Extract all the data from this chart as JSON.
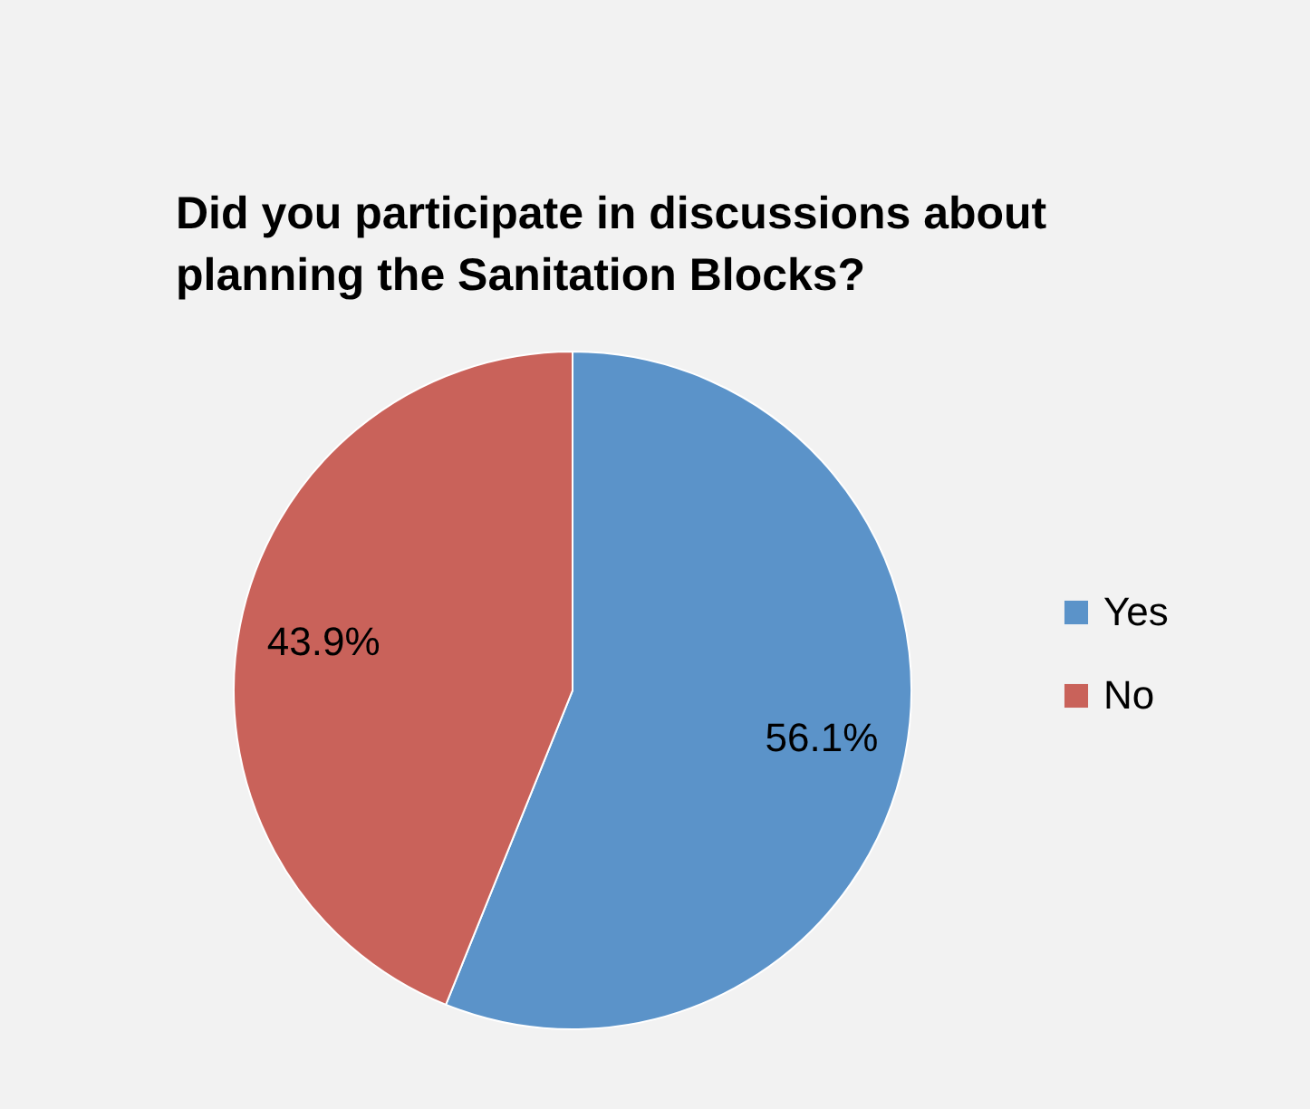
{
  "chart_data": {
    "type": "pie",
    "title": [
      "Did you participate in discussions about",
      "planning the Sanitation Blocks?"
    ],
    "categories": [
      "Yes",
      "No"
    ],
    "values": [
      56.1,
      43.9
    ],
    "value_labels": [
      "56.1%",
      "43.9%"
    ],
    "colors": [
      "#5b93c9",
      "#c9625a"
    ],
    "legend": "right"
  }
}
